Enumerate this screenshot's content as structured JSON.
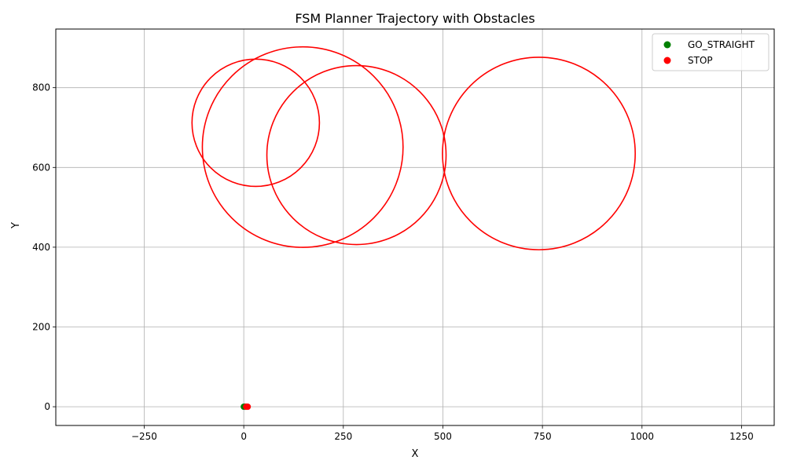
{
  "chart_data": {
    "type": "scatter",
    "title": "FSM Planner Trajectory with Obstacles",
    "xlabel": "X",
    "ylabel": "Y",
    "xlim": [
      -472,
      1332
    ],
    "ylim": [
      -47,
      947
    ],
    "xticks": [
      -250,
      0,
      250,
      500,
      750,
      1000,
      1250
    ],
    "xtick_labels": [
      "−250",
      "0",
      "250",
      "500",
      "750",
      "1000",
      "1250"
    ],
    "yticks": [
      0,
      200,
      400,
      600,
      800
    ],
    "ytick_labels": [
      "0",
      "200",
      "400",
      "600",
      "800"
    ],
    "grid": true,
    "legend_position": "top-right",
    "series": [
      {
        "name": "GO_STRAIGHT",
        "color": "#008000",
        "points": [
          [
            0,
            0
          ],
          [
            2,
            0
          ],
          [
            4,
            0
          ]
        ]
      },
      {
        "name": "STOP",
        "color": "#ff0000",
        "points": [
          [
            6,
            0
          ],
          [
            8,
            0
          ],
          [
            10,
            0
          ]
        ]
      }
    ],
    "obstacles": [
      {
        "cx": 30,
        "cy": 712,
        "r": 160,
        "color": "#ff0000"
      },
      {
        "cx": 148,
        "cy": 651,
        "r": 252,
        "color": "#ff0000"
      },
      {
        "cx": 283,
        "cy": 631,
        "r": 225,
        "color": "#ff0000"
      },
      {
        "cx": 741,
        "cy": 635,
        "r": 242,
        "color": "#ff0000"
      }
    ]
  }
}
